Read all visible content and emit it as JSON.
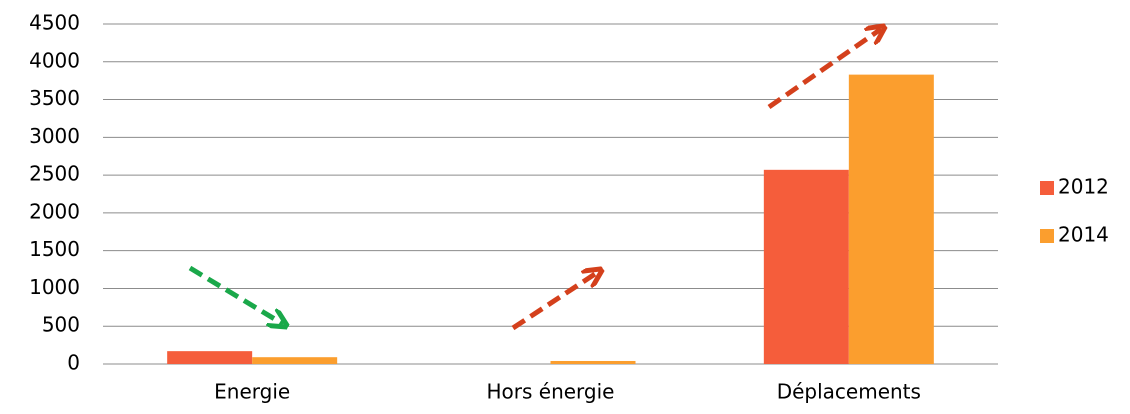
{
  "chart_data": {
    "type": "bar",
    "categories": [
      "Energie",
      "Hors énergie",
      "Déplacements"
    ],
    "series": [
      {
        "name": "2012",
        "color": "#f55d3b",
        "values": [
          170,
          0,
          2570
        ]
      },
      {
        "name": "2014",
        "color": "#fb9e2e",
        "values": [
          90,
          40,
          3830
        ]
      }
    ],
    "ylim": [
      0,
      4500
    ],
    "yticks": [
      0,
      500,
      1000,
      1500,
      2000,
      2500,
      3000,
      3500,
      4000,
      4500
    ],
    "grid": true,
    "legend": "right"
  }
}
